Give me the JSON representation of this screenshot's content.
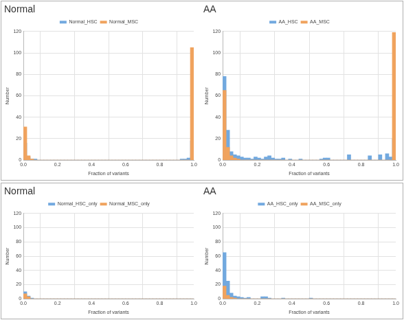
{
  "chart_data": [
    {
      "type": "histogram",
      "title": "Normal",
      "x_label": "Fraction of variants",
      "y_label": "Number",
      "bins": [
        0,
        0.02,
        0.04,
        0.06,
        0.08,
        0.1,
        0.12,
        0.14,
        0.16,
        0.18,
        0.2,
        0.22,
        0.24,
        0.26,
        0.28,
        0.3,
        0.32,
        0.34,
        0.36,
        0.38,
        0.4,
        0.42,
        0.44,
        0.46,
        0.48,
        0.5,
        0.52,
        0.54,
        0.56,
        0.58,
        0.6,
        0.62,
        0.64,
        0.66,
        0.68,
        0.7,
        0.72,
        0.74,
        0.76,
        0.78,
        0.8,
        0.82,
        0.84,
        0.86,
        0.88,
        0.9,
        0.92,
        0.94,
        0.96,
        0.98,
        1
      ],
      "series": [
        {
          "name": "Normal_HSC",
          "color": "#72a9df",
          "values": [
            16,
            3,
            1,
            1,
            0,
            0,
            0,
            0,
            0,
            0,
            0,
            0,
            0,
            0,
            0,
            0,
            0,
            0,
            0,
            0,
            0,
            0,
            0,
            0,
            0,
            0,
            0,
            0,
            0,
            0,
            0,
            0,
            0,
            0,
            0,
            0,
            0,
            0,
            0,
            0,
            0,
            0,
            0,
            0,
            0,
            0,
            1,
            1,
            2,
            18
          ]
        },
        {
          "name": "Normal_MSC",
          "color": "#f0a35e",
          "values": [
            31,
            4,
            1,
            0,
            0,
            0,
            0,
            0,
            0,
            0,
            0,
            0,
            0,
            0,
            0,
            0,
            0,
            0,
            0,
            0,
            0,
            0,
            0,
            0,
            0,
            0,
            0,
            0,
            0,
            0,
            0,
            0,
            0,
            0,
            0,
            0,
            0,
            0,
            0,
            0,
            0,
            0,
            0,
            0,
            0,
            0,
            0,
            0,
            0,
            105
          ]
        }
      ],
      "xlim": [
        0,
        1
      ],
      "xticks": [
        {
          "value": 0,
          "label": "0.0"
        },
        {
          "value": 0.2,
          "label": "0.2"
        },
        {
          "value": 0.4,
          "label": "0.4"
        },
        {
          "value": 0.6,
          "label": "0.6"
        },
        {
          "value": 0.8,
          "label": "0.8"
        },
        {
          "value": 1,
          "label": "1.0"
        }
      ],
      "ylim": [
        0,
        120
      ],
      "yticks": [
        0,
        20,
        40,
        60,
        80,
        100,
        120
      ],
      "grid": true,
      "legend": "top"
    },
    {
      "type": "histogram",
      "title": "AA",
      "x_label": "Fraction of variants",
      "y_label": "Number",
      "bins": [
        0,
        0.02,
        0.04,
        0.06,
        0.08,
        0.1,
        0.12,
        0.14,
        0.16,
        0.18,
        0.2,
        0.22,
        0.24,
        0.26,
        0.28,
        0.3,
        0.32,
        0.34,
        0.36,
        0.38,
        0.4,
        0.42,
        0.44,
        0.46,
        0.48,
        0.5,
        0.52,
        0.54,
        0.56,
        0.58,
        0.6,
        0.62,
        0.64,
        0.66,
        0.68,
        0.7,
        0.72,
        0.74,
        0.76,
        0.78,
        0.8,
        0.82,
        0.84,
        0.86,
        0.88,
        0.9,
        0.92,
        0.94,
        0.96,
        0.98,
        1
      ],
      "series": [
        {
          "name": "AA_HSC",
          "color": "#72a9df",
          "values": [
            78,
            28,
            8,
            5,
            4,
            3,
            2,
            2,
            1,
            3,
            2,
            1,
            3,
            4,
            2,
            1,
            1,
            2,
            0,
            1,
            0,
            0,
            1,
            0,
            0,
            0,
            0,
            0,
            1,
            2,
            2,
            0,
            0,
            0,
            0,
            0,
            5,
            0,
            0,
            0,
            0,
            0,
            4,
            0,
            0,
            5,
            0,
            6,
            3,
            20
          ]
        },
        {
          "name": "AA_MSC",
          "color": "#f0a35e",
          "values": [
            65,
            12,
            4,
            2,
            1,
            0,
            0,
            0,
            0,
            0,
            0,
            0,
            0,
            0,
            0,
            0,
            0,
            0,
            0,
            0,
            0,
            0,
            0,
            0,
            0,
            0,
            0,
            0,
            0,
            0,
            0,
            0,
            0,
            0,
            0,
            0,
            0,
            0,
            0,
            0,
            0,
            0,
            0,
            0,
            0,
            0,
            0,
            0,
            0,
            119
          ]
        }
      ],
      "xlim": [
        0,
        1
      ],
      "xticks": [
        {
          "value": 0,
          "label": "0.0"
        },
        {
          "value": 0.2,
          "label": "0.2"
        },
        {
          "value": 0.4,
          "label": "0.4"
        },
        {
          "value": 0.6,
          "label": "0.6"
        },
        {
          "value": 0.8,
          "label": "0.8"
        },
        {
          "value": 1,
          "label": "1.0"
        }
      ],
      "ylim": [
        0,
        120
      ],
      "yticks": [
        0,
        20,
        40,
        60,
        80,
        100,
        120
      ],
      "grid": true,
      "legend": "top"
    },
    {
      "type": "histogram",
      "title": "Normal",
      "x_label": "Fraction of variants",
      "y_label": "Number",
      "bins": [
        0,
        0.02,
        0.04,
        0.06,
        0.08,
        0.1,
        0.12,
        0.14,
        0.16,
        0.18,
        0.2,
        0.22,
        0.24,
        0.26,
        0.28,
        0.3,
        0.32,
        0.34,
        0.36,
        0.38,
        0.4,
        0.42,
        0.44,
        0.46,
        0.48,
        0.5,
        0.52,
        0.54,
        0.56,
        0.58,
        0.6,
        0.62,
        0.64,
        0.66,
        0.68,
        0.7,
        0.72,
        0.74,
        0.76,
        0.78,
        0.8,
        0.82,
        0.84,
        0.86,
        0.88,
        0.9,
        0.92,
        0.94,
        0.96,
        0.98,
        1
      ],
      "series": [
        {
          "name": "Normal_HSC_only",
          "color": "#72a9df",
          "values": [
            10,
            4,
            1,
            0,
            0,
            0,
            0,
            0,
            0,
            0,
            0,
            0,
            0,
            0,
            0,
            0,
            0,
            0,
            0,
            0,
            0,
            0,
            0,
            0,
            0,
            0,
            0,
            0,
            0,
            0,
            0,
            0,
            0,
            0,
            0,
            0,
            0,
            0,
            0,
            0,
            0,
            0,
            0,
            0,
            0,
            0,
            0,
            0,
            0,
            0
          ]
        },
        {
          "name": "Normal_MSC_only",
          "color": "#f0a35e",
          "values": [
            7,
            3,
            0,
            0,
            0,
            0,
            0,
            0,
            0,
            0,
            0,
            0,
            0,
            0,
            0,
            0,
            0,
            0,
            0,
            0,
            0,
            0,
            0,
            0,
            0,
            0,
            0,
            0,
            0,
            0,
            0,
            0,
            0,
            0,
            0,
            0,
            0,
            0,
            0,
            0,
            0,
            0,
            0,
            0,
            0,
            0,
            0,
            0,
            0,
            0
          ]
        }
      ],
      "xlim": [
        0,
        1
      ],
      "xticks": [
        {
          "value": 0,
          "label": "0.0"
        },
        {
          "value": 0.2,
          "label": "0.2"
        },
        {
          "value": 0.4,
          "label": "0.4"
        },
        {
          "value": 0.6,
          "label": "0.6"
        },
        {
          "value": 0.8,
          "label": "0.8"
        },
        {
          "value": 1,
          "label": "1.0"
        }
      ],
      "ylim": [
        0,
        120
      ],
      "yticks": [
        0,
        20,
        40,
        60,
        80,
        100,
        120
      ],
      "grid": true,
      "legend": "top"
    },
    {
      "type": "histogram",
      "title": "AA",
      "x_label": "Fraction of variants",
      "y_label": "Number",
      "bins": [
        0,
        0.02,
        0.04,
        0.06,
        0.08,
        0.1,
        0.12,
        0.14,
        0.16,
        0.18,
        0.2,
        0.22,
        0.24,
        0.26,
        0.28,
        0.3,
        0.32,
        0.34,
        0.36,
        0.38,
        0.4,
        0.42,
        0.44,
        0.46,
        0.48,
        0.5,
        0.52,
        0.54,
        0.56,
        0.58,
        0.6,
        0.62,
        0.64,
        0.66,
        0.68,
        0.7,
        0.72,
        0.74,
        0.76,
        0.78,
        0.8,
        0.82,
        0.84,
        0.86,
        0.88,
        0.9,
        0.92,
        0.94,
        0.96,
        0.98,
        1
      ],
      "series": [
        {
          "name": "AA_HSC_only",
          "color": "#72a9df",
          "values": [
            65,
            25,
            8,
            4,
            3,
            2,
            1,
            2,
            0,
            0,
            0,
            3,
            3,
            1,
            0,
            0,
            0,
            1,
            0,
            0,
            0,
            0,
            0,
            0,
            0,
            1,
            0,
            0,
            0,
            0,
            0,
            0,
            0,
            0,
            0,
            0,
            0,
            0,
            0,
            0,
            0,
            0,
            0,
            0,
            0,
            0,
            0,
            0,
            0,
            0
          ]
        },
        {
          "name": "AA_MSC_only",
          "color": "#f0a35e",
          "values": [
            18,
            5,
            2,
            1,
            0,
            0,
            0,
            0,
            0,
            0,
            0,
            0,
            0,
            0,
            0,
            0,
            0,
            0,
            0,
            0,
            0,
            0,
            0,
            0,
            0,
            0,
            0,
            0,
            0,
            0,
            0,
            0,
            0,
            0,
            0,
            0,
            0,
            0,
            0,
            0,
            0,
            0,
            0,
            0,
            0,
            0,
            0,
            0,
            0,
            0
          ]
        }
      ],
      "xlim": [
        0,
        1
      ],
      "xticks": [
        {
          "value": 0,
          "label": "0.0"
        },
        {
          "value": 0.2,
          "label": "0.2"
        },
        {
          "value": 0.4,
          "label": "0.4"
        },
        {
          "value": 0.6,
          "label": "0.6"
        },
        {
          "value": 0.8,
          "label": "0.8"
        },
        {
          "value": 1,
          "label": "1.0"
        }
      ],
      "ylim": [
        0,
        120
      ],
      "yticks": [
        0,
        20,
        40,
        60,
        80,
        100,
        120
      ],
      "grid": true,
      "legend": "top"
    }
  ]
}
